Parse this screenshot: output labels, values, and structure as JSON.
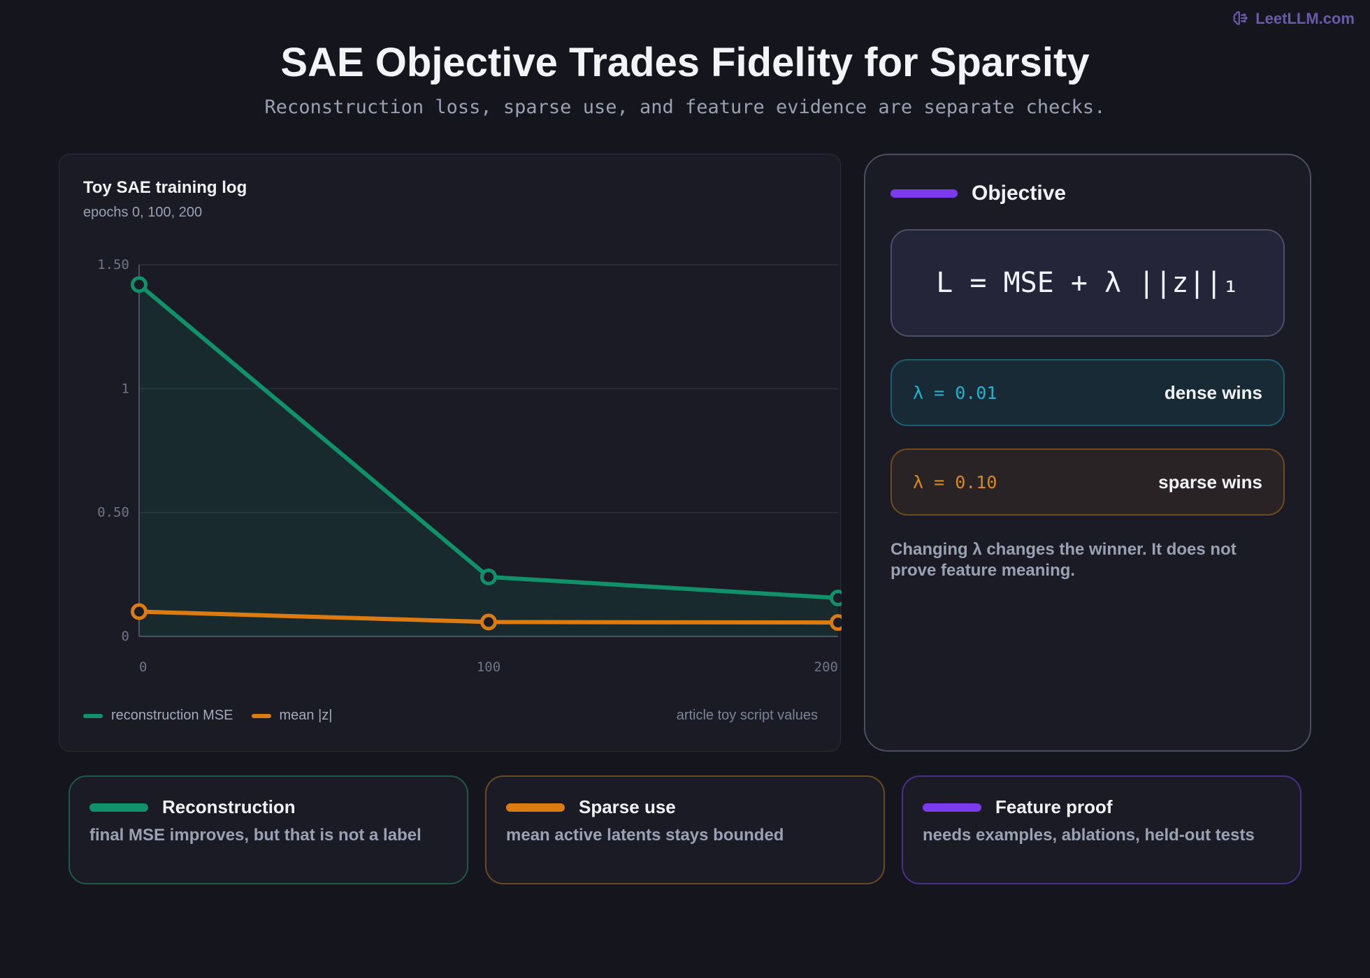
{
  "brand": {
    "name": "LeetLLM.com",
    "icon": "brain-icon",
    "color": "#6b5aa8"
  },
  "header": {
    "title": "SAE Objective Trades Fidelity for Sparsity",
    "subtitle": "Reconstruction loss, sparse use, and feature evidence are separate checks."
  },
  "chart": {
    "title": "Toy SAE training log",
    "subtitle": "epochs 0, 100, 200",
    "note": "article toy script values"
  },
  "chart_data": {
    "type": "line",
    "title": "Toy SAE training log",
    "x": [
      0,
      100,
      200
    ],
    "x_tick_labels": [
      "0",
      "100",
      "200"
    ],
    "y_tick_values": [
      0,
      0.5,
      1,
      1.5
    ],
    "y_tick_labels": [
      "0",
      "0.50",
      "1",
      "1.50"
    ],
    "ylim": [
      0,
      1.5
    ],
    "xlim": [
      0,
      200
    ],
    "grid": true,
    "legend": "bottom-left",
    "series": [
      {
        "name": "reconstruction MSE",
        "values": [
          1.42,
          0.24,
          0.155
        ],
        "color": "#10916a",
        "fill": true
      },
      {
        "name": "mean |z|",
        "values": [
          0.1,
          0.058,
          0.056
        ],
        "color": "#db7c12",
        "fill": false
      }
    ]
  },
  "objective": {
    "label": "Objective",
    "accent": "#7c3aed",
    "formula": "L = MSE + λ ||z||₁",
    "options": [
      {
        "lambda": "λ = 0.01",
        "result": "dense wins"
      },
      {
        "lambda": "λ = 0.10",
        "result": "sparse wins"
      }
    ],
    "note": "Changing λ changes the winner. It does not prove feature meaning."
  },
  "cards": [
    {
      "title": "Reconstruction",
      "text": "final MSE improves, but that is not a label",
      "color": "#10916a"
    },
    {
      "title": "Sparse use",
      "text": "mean active latents stays bounded",
      "color": "#db7c12"
    },
    {
      "title": "Feature proof",
      "text": "needs examples, ablations, held-out tests",
      "color": "#7c3aed"
    }
  ]
}
